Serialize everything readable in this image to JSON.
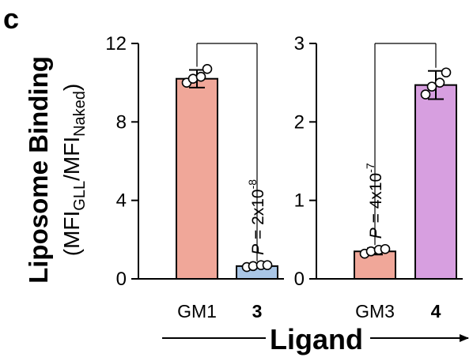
{
  "panel_label": "c",
  "y_axis_title": {
    "line1": "Liposome Binding",
    "line2_prefix": "(MFI",
    "line2_sub1": "GLL",
    "line2_mid": "/MFI",
    "line2_sub2": "Naked",
    "line2_suffix": ")"
  },
  "x_axis_title": "Ligand",
  "colors": {
    "GM1": "#f0a799",
    "3": "#a9c6e6",
    "GM3": "#f0a799",
    "4": "#d79fe0",
    "axis": "#000000"
  },
  "chart_data": [
    {
      "type": "bar",
      "categories": [
        "GM1",
        "3"
      ],
      "category_bold": [
        false,
        true
      ],
      "values": [
        10.2,
        0.65
      ],
      "error": [
        0.45,
        0.08
      ],
      "points": [
        [
          10.0,
          10.2,
          10.3,
          10.7
        ],
        [
          0.6,
          0.65,
          0.7,
          0.7
        ]
      ],
      "ylim": [
        0,
        12
      ],
      "yticks": [
        0,
        4,
        8,
        12
      ],
      "annotation": {
        "p_label": "P",
        "text": " = 2x10",
        "exponent": "-8"
      }
    },
    {
      "type": "bar",
      "categories": [
        "GM3",
        "4"
      ],
      "category_bold": [
        false,
        true
      ],
      "values": [
        0.35,
        2.47
      ],
      "error": [
        0.04,
        0.18
      ],
      "points": [
        [
          0.32,
          0.35,
          0.37,
          0.38
        ],
        [
          2.35,
          2.45,
          2.5,
          2.63
        ]
      ],
      "ylim": [
        0,
        3
      ],
      "yticks": [
        0,
        1,
        2,
        3
      ],
      "annotation": {
        "p_label": "P",
        "text": " = 4x10",
        "exponent": "-7"
      }
    }
  ]
}
